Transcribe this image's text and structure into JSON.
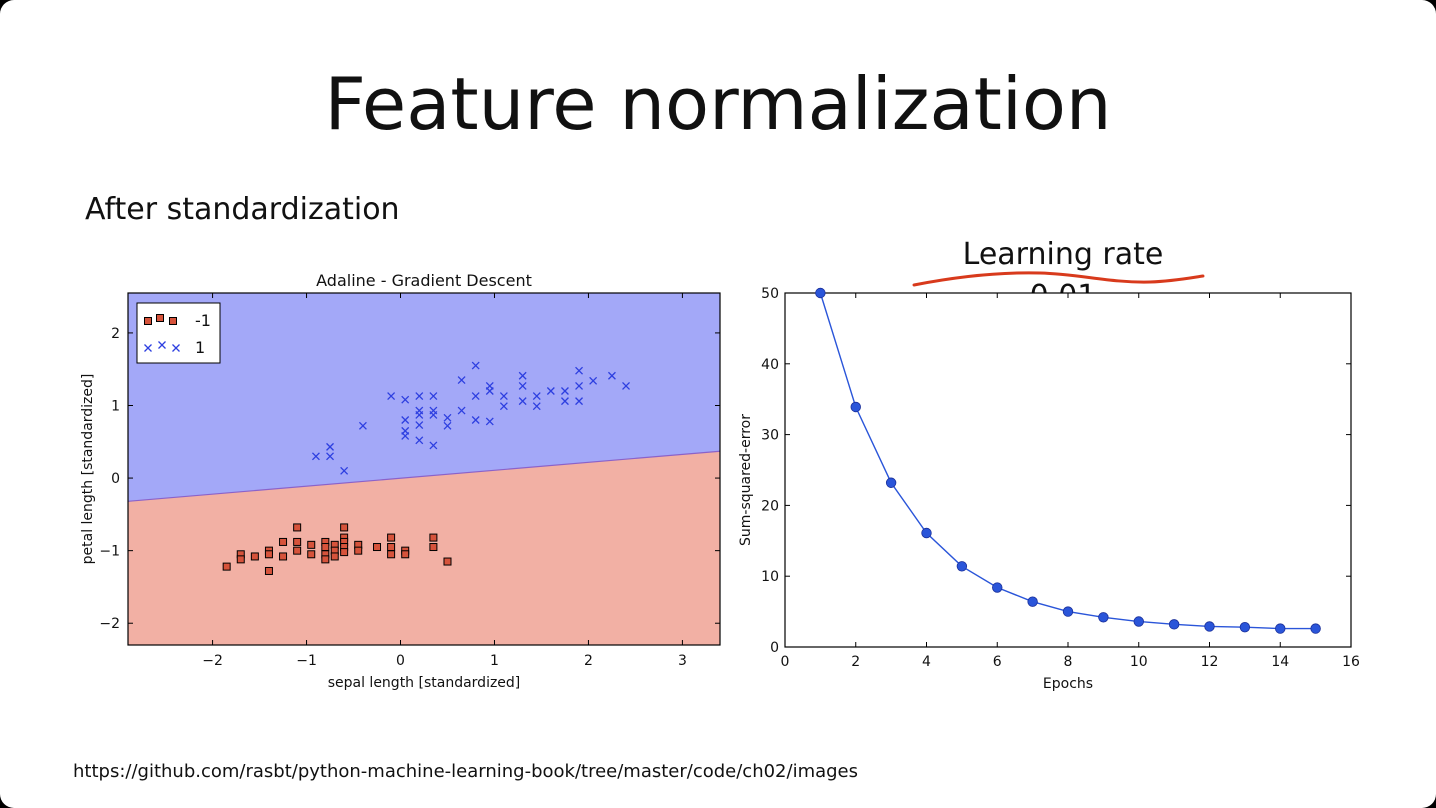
{
  "slide": {
    "title": "Feature normalization",
    "subtitle": "After standardization",
    "annotation": "Learning rate 0.01",
    "source_url": "https://github.com/rasbt/python-machine-learning-book/tree/master/code/ch02/images"
  },
  "colors": {
    "region_positive": "#a3a8f8",
    "region_negative": "#f2b0a4",
    "boundary": "#8b62c9",
    "class_neg_marker": "#d6533b",
    "class_pos_marker": "#2d3fe0",
    "line_series": "#2a55d9",
    "annotation_underline": "#d83a1c"
  },
  "chart_data": [
    {
      "type": "scatter",
      "title": "Adaline - Gradient Descent",
      "xlabel": "sepal length [standardized]",
      "ylabel": "petal length [standardized]",
      "xlim": [
        -2.9,
        3.4
      ],
      "ylim": [
        -2.3,
        2.55
      ],
      "xticks": [
        -2,
        -1,
        0,
        1,
        2,
        3
      ],
      "yticks": [
        -2,
        -1,
        0,
        1,
        2
      ],
      "xtick_labels": [
        "−2",
        "−1",
        "0",
        "1",
        "2",
        "3"
      ],
      "ytick_labels": [
        "−2",
        "−1",
        "0",
        "1",
        "2"
      ],
      "legend_position": "upper-left",
      "decision_boundary": [
        [
          -2.9,
          -0.32
        ],
        [
          3.4,
          0.37
        ]
      ],
      "series": [
        {
          "name": "-1",
          "marker": "square",
          "points": [
            [
              -1.85,
              -1.22
            ],
            [
              -1.7,
              -1.05
            ],
            [
              -1.7,
              -1.12
            ],
            [
              -1.55,
              -1.08
            ],
            [
              -1.4,
              -1.0
            ],
            [
              -1.4,
              -1.05
            ],
            [
              -1.4,
              -1.28
            ],
            [
              -1.25,
              -0.88
            ],
            [
              -1.25,
              -1.08
            ],
            [
              -1.1,
              -0.68
            ],
            [
              -1.1,
              -0.88
            ],
            [
              -1.1,
              -1.0
            ],
            [
              -0.95,
              -0.92
            ],
            [
              -0.95,
              -1.05
            ],
            [
              -0.8,
              -0.88
            ],
            [
              -0.8,
              -0.95
            ],
            [
              -0.8,
              -1.05
            ],
            [
              -0.8,
              -1.12
            ],
            [
              -0.7,
              -0.92
            ],
            [
              -0.7,
              -1.0
            ],
            [
              -0.7,
              -1.08
            ],
            [
              -0.6,
              -0.68
            ],
            [
              -0.6,
              -0.82
            ],
            [
              -0.6,
              -0.88
            ],
            [
              -0.6,
              -0.95
            ],
            [
              -0.6,
              -1.02
            ],
            [
              -0.45,
              -0.92
            ],
            [
              -0.45,
              -1.0
            ],
            [
              -0.25,
              -0.95
            ],
            [
              -0.1,
              -0.82
            ],
            [
              -0.1,
              -0.95
            ],
            [
              -0.1,
              -1.05
            ],
            [
              0.05,
              -1.0
            ],
            [
              0.05,
              -1.05
            ],
            [
              0.35,
              -0.82
            ],
            [
              0.35,
              -0.95
            ],
            [
              0.5,
              -1.15
            ]
          ]
        },
        {
          "name": "1",
          "marker": "x",
          "points": [
            [
              -0.9,
              0.3
            ],
            [
              -0.75,
              0.3
            ],
            [
              -0.75,
              0.43
            ],
            [
              -0.6,
              0.1
            ],
            [
              -0.4,
              0.72
            ],
            [
              -0.1,
              1.13
            ],
            [
              0.05,
              1.08
            ],
            [
              0.05,
              0.8
            ],
            [
              0.05,
              0.65
            ],
            [
              0.05,
              0.58
            ],
            [
              0.2,
              1.13
            ],
            [
              0.2,
              0.93
            ],
            [
              0.2,
              0.87
            ],
            [
              0.2,
              0.73
            ],
            [
              0.2,
              0.52
            ],
            [
              0.35,
              1.13
            ],
            [
              0.35,
              0.93
            ],
            [
              0.35,
              0.87
            ],
            [
              0.35,
              0.45
            ],
            [
              0.5,
              0.83
            ],
            [
              0.5,
              0.72
            ],
            [
              0.65,
              1.35
            ],
            [
              0.65,
              0.93
            ],
            [
              0.8,
              1.55
            ],
            [
              0.8,
              1.13
            ],
            [
              0.8,
              0.8
            ],
            [
              0.95,
              1.27
            ],
            [
              0.95,
              1.2
            ],
            [
              0.95,
              0.78
            ],
            [
              1.1,
              1.13
            ],
            [
              1.1,
              0.99
            ],
            [
              1.3,
              1.41
            ],
            [
              1.3,
              1.27
            ],
            [
              1.3,
              1.06
            ],
            [
              1.45,
              1.13
            ],
            [
              1.45,
              0.99
            ],
            [
              1.6,
              1.2
            ],
            [
              1.75,
              1.2
            ],
            [
              1.75,
              1.06
            ],
            [
              1.9,
              1.48
            ],
            [
              1.9,
              1.27
            ],
            [
              1.9,
              1.06
            ],
            [
              2.05,
              1.34
            ],
            [
              2.25,
              1.41
            ],
            [
              2.4,
              1.27
            ]
          ]
        }
      ]
    },
    {
      "type": "line",
      "title": "",
      "xlabel": "Epochs",
      "ylabel": "Sum-squared-error",
      "xlim": [
        0,
        16
      ],
      "ylim": [
        0,
        50
      ],
      "xticks": [
        0,
        2,
        4,
        6,
        8,
        10,
        12,
        14,
        16
      ],
      "yticks": [
        0,
        10,
        20,
        30,
        40,
        50
      ],
      "xtick_labels": [
        "0",
        "2",
        "4",
        "6",
        "8",
        "10",
        "12",
        "14",
        "16"
      ],
      "ytick_labels": [
        "0",
        "10",
        "20",
        "30",
        "40",
        "50"
      ],
      "x": [
        1,
        2,
        3,
        4,
        5,
        6,
        7,
        8,
        9,
        10,
        11,
        12,
        13,
        14,
        15
      ],
      "series": [
        {
          "values": [
            50.0,
            33.9,
            23.2,
            16.1,
            11.4,
            8.4,
            6.4,
            5.0,
            4.2,
            3.6,
            3.2,
            2.9,
            2.8,
            2.6,
            2.6
          ]
        }
      ]
    }
  ]
}
